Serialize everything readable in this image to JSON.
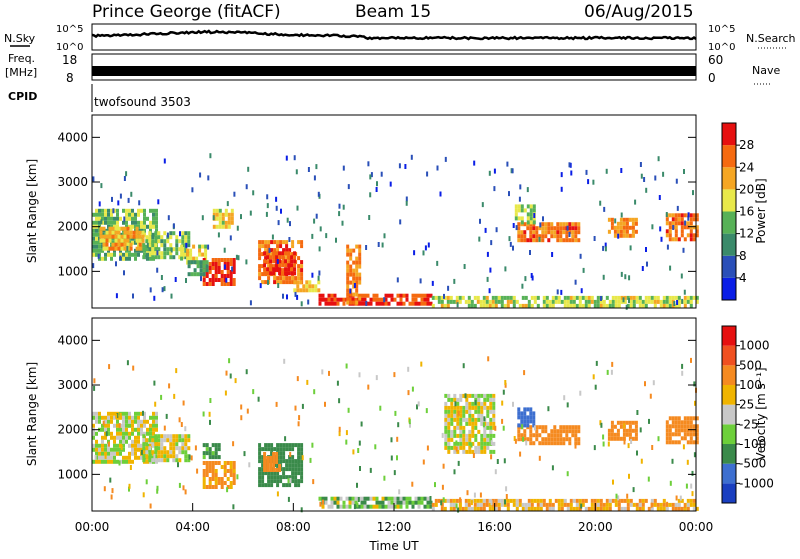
{
  "header": {
    "station": "Prince George (fitACF)",
    "beam": "Beam 15",
    "date": "06/Aug/2015"
  },
  "panels": {
    "nsky": {
      "left_label": "N.Sky",
      "left_ticks": [
        "10^5",
        "10^0"
      ],
      "right_label": "N.Search",
      "right_ticks": [
        "10^5",
        "10^0"
      ]
    },
    "freq": {
      "left_label_1": "Freq.",
      "left_label_2": "[MHz]",
      "left_ticks": [
        "18",
        "8"
      ],
      "right_label": "Nave",
      "right_ticks": [
        "60",
        "0"
      ]
    },
    "cpid": {
      "label": "CPID",
      "program": "twofsound 3503"
    }
  },
  "colors": {
    "power_scale": [
      "#0a1ee6",
      "#2a4fb8",
      "#3a8a6a",
      "#57b157",
      "#e8e84a",
      "#f5a623",
      "#f56a10",
      "#e61010"
    ],
    "velocity_scale": [
      "#1a3fc0",
      "#3d6fd0",
      "#3a8a4a",
      "#6dcf3a",
      "#c8c8c8",
      "#f0b400",
      "#f58a20",
      "#f05020",
      "#e61010"
    ]
  },
  "chart_data": [
    {
      "type": "heatmap",
      "panel": "power",
      "ylabel": "Slant Range [km]",
      "ylim": [
        180,
        4500
      ],
      "yticks": [
        "1000",
        "2000",
        "3000",
        "4000"
      ],
      "colorbar_label": "Power [dB]",
      "colorbar_ticks": [
        "4",
        "8",
        "12",
        "16",
        "20",
        "24",
        "28"
      ],
      "colorbar_range": [
        0,
        32
      ],
      "regions": [
        {
          "t0": 0.0,
          "t1": 2.6,
          "r0": 1300,
          "r1": 2400,
          "v": 14
        },
        {
          "t0": 0.3,
          "t1": 2.0,
          "r0": 1500,
          "r1": 2000,
          "v": 22
        },
        {
          "t0": 2.0,
          "t1": 3.8,
          "r0": 1300,
          "r1": 1900,
          "v": 15
        },
        {
          "t0": 3.5,
          "t1": 4.5,
          "r0": 1200,
          "r1": 1600,
          "v": 18
        },
        {
          "t0": 4.4,
          "t1": 5.6,
          "r0": 700,
          "r1": 1300,
          "v": 28
        },
        {
          "t0": 3.8,
          "t1": 4.6,
          "r0": 900,
          "r1": 1250,
          "v": 12
        },
        {
          "t0": 4.8,
          "t1": 5.6,
          "r0": 2000,
          "r1": 2400,
          "v": 19
        },
        {
          "t0": 6.6,
          "t1": 8.3,
          "r0": 800,
          "r1": 1700,
          "v": 25
        },
        {
          "t0": 6.8,
          "t1": 8.1,
          "r0": 1000,
          "r1": 1450,
          "v": 29
        },
        {
          "t0": 8.0,
          "t1": 9.0,
          "r0": 600,
          "r1": 800,
          "v": 20
        },
        {
          "t0": 9.0,
          "t1": 13.5,
          "r0": 300,
          "r1": 500,
          "v": 28
        },
        {
          "t0": 10.1,
          "t1": 10.6,
          "r0": 300,
          "r1": 1600,
          "v": 24
        },
        {
          "t0": 13.5,
          "t1": 24.0,
          "r0": 250,
          "r1": 450,
          "v": 17
        },
        {
          "t0": 16.9,
          "t1": 19.4,
          "r0": 1700,
          "r1": 2100,
          "v": 26
        },
        {
          "t0": 16.8,
          "t1": 17.6,
          "r0": 2100,
          "r1": 2500,
          "v": 16
        },
        {
          "t0": 20.5,
          "t1": 21.6,
          "r0": 1800,
          "r1": 2200,
          "v": 24
        },
        {
          "t0": 22.8,
          "t1": 24.0,
          "r0": 1700,
          "r1": 2300,
          "v": 26
        }
      ]
    },
    {
      "type": "heatmap",
      "panel": "velocity",
      "xlabel": "Time UT",
      "ylabel": "Slant Range [km]",
      "ylim": [
        180,
        4500
      ],
      "yticks": [
        "1000",
        "2000",
        "3000",
        "4000"
      ],
      "xticks": [
        "00:00",
        "04:00",
        "08:00",
        "12:00",
        "16:00",
        "20:00",
        "00:00"
      ],
      "xlim": [
        0,
        24
      ],
      "colorbar_label": "Velocity [m s⁻¹]",
      "colorbar_ticks": [
        "1000",
        "500",
        "100",
        "25",
        "-25",
        "-100",
        "-500",
        "-1000"
      ],
      "regions": [
        {
          "t0": 0.0,
          "t1": 2.6,
          "r0": 1300,
          "r1": 2400,
          "v": 0
        },
        {
          "t0": 2.0,
          "t1": 3.8,
          "r0": 1300,
          "r1": 1900,
          "v": 0
        },
        {
          "t0": 4.4,
          "t1": 5.6,
          "r0": 700,
          "r1": 1300,
          "v": -150
        },
        {
          "t0": 4.4,
          "t1": 5.0,
          "r0": 1400,
          "r1": 1700,
          "v": 150
        },
        {
          "t0": 6.6,
          "t1": 8.3,
          "r0": 800,
          "r1": 1700,
          "v": 300
        },
        {
          "t0": 6.8,
          "t1": 7.4,
          "r0": 1100,
          "r1": 1500,
          "v": -200
        },
        {
          "t0": 9.0,
          "t1": 13.5,
          "r0": 300,
          "r1": 500,
          "v": 60
        },
        {
          "t0": 13.5,
          "t1": 24.0,
          "r0": 250,
          "r1": 450,
          "v": -80
        },
        {
          "t0": 16.9,
          "t1": 19.4,
          "r0": 1700,
          "r1": 2100,
          "v": -400
        },
        {
          "t0": 16.9,
          "t1": 17.6,
          "r0": 2100,
          "r1": 2500,
          "v": 700
        },
        {
          "t0": 20.5,
          "t1": 21.6,
          "r0": 1800,
          "r1": 2200,
          "v": -400
        },
        {
          "t0": 22.8,
          "t1": 24.0,
          "r0": 1700,
          "r1": 2300,
          "v": -350
        },
        {
          "t0": 14.0,
          "t1": 16.0,
          "r0": 1500,
          "r1": 2800,
          "v": 0
        }
      ]
    }
  ]
}
